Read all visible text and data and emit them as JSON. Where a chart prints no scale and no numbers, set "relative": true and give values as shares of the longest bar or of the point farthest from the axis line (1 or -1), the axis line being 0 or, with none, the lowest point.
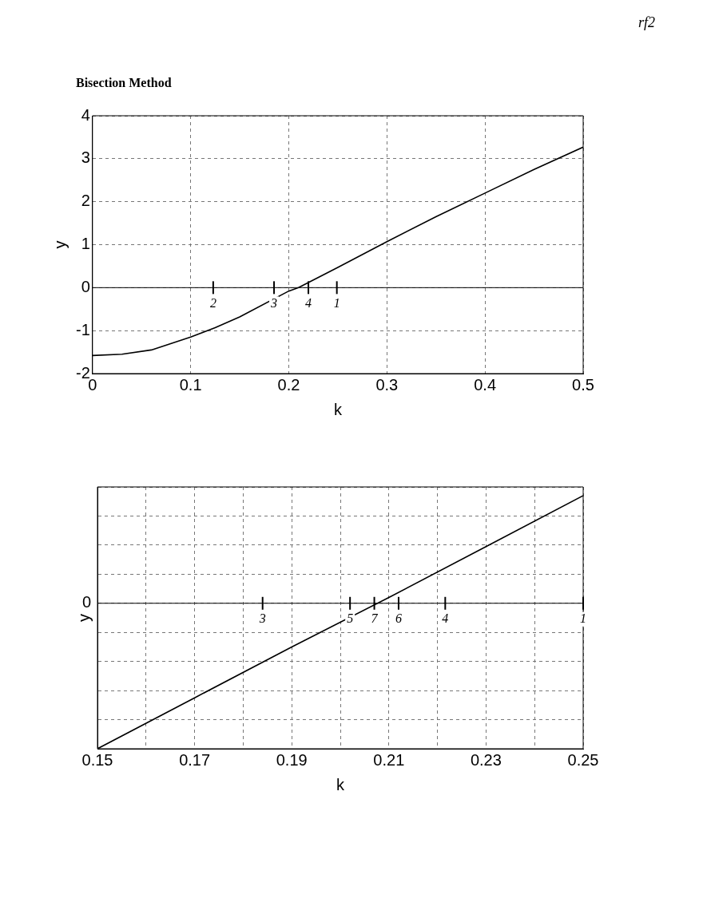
{
  "chart_data": [
    {
      "type": "line",
      "title": "Bisection Method",
      "xlabel": "k",
      "ylabel": "y",
      "x": [
        0,
        0.03,
        0.06,
        0.1,
        0.125,
        0.15,
        0.2,
        0.21,
        0.25,
        0.3,
        0.35,
        0.4,
        0.45,
        0.5
      ],
      "series": [
        {
          "color": "#000000",
          "values": [
            -1.58,
            -1.55,
            -1.45,
            -1.15,
            -0.93,
            -0.68,
            -0.08,
            0,
            0.47,
            1.07,
            1.65,
            2.2,
            2.75,
            3.27
          ]
        }
      ],
      "xlim": [
        0,
        0.5
      ],
      "xticks": [
        0,
        0.1,
        0.2,
        0.3,
        0.4,
        0.5
      ],
      "ylim": [
        -2,
        4
      ],
      "yticks": [
        -2,
        -1,
        0,
        1,
        2,
        3,
        4
      ],
      "grid": true,
      "marker": "none",
      "line_style": "solid",
      "ref_lines": [
        {
          "axis": "y",
          "value": 0,
          "color": "#000000"
        }
      ],
      "annotations": [
        "rf2",
        {
          "text": "2",
          "x": 0.123,
          "y": 0
        },
        {
          "text": "3",
          "x": 0.185,
          "y": 0
        },
        {
          "text": "4",
          "x": 0.22,
          "y": 0
        },
        {
          "text": "1",
          "x": 0.249,
          "y": 0
        }
      ]
    },
    {
      "type": "line",
      "xlabel": "k",
      "ylabel": "y",
      "relative": true,
      "x": [
        0.15,
        0.17,
        0.19,
        0.21,
        0.23,
        0.25
      ],
      "series": [
        {
          "color": "#000000",
          "values": [
            -1,
            -0.65,
            -0.3,
            0.04,
            0.39,
            0.74
          ]
        }
      ],
      "xlim": [
        0.15,
        0.25
      ],
      "xticks": [
        0.15,
        {
          "value": 0.16,
          "label": null
        },
        0.17,
        {
          "value": 0.18,
          "label": null
        },
        0.19,
        {
          "value": 0.2,
          "label": null
        },
        0.21,
        {
          "value": 0.22,
          "label": null
        },
        0.23,
        {
          "value": 0.24,
          "label": null
        },
        0.25
      ],
      "tick_labels": "x",
      "grid": true,
      "marker": "none",
      "line_style": "solid",
      "ref_lines": [
        {
          "axis": "y",
          "value": 0,
          "color": "#000000",
          "label": "0"
        }
      ],
      "annotations": [
        {
          "text": "3",
          "x": 0.184,
          "y": 0
        },
        {
          "text": "5",
          "x": 0.202,
          "y": 0
        },
        {
          "text": "7",
          "x": 0.207,
          "y": 0
        },
        {
          "text": "6",
          "x": 0.212,
          "y": 0
        },
        {
          "text": "4",
          "x": 0.2216,
          "y": 0
        },
        {
          "text": "1",
          "x": 0.25,
          "y": 0
        }
      ]
    }
  ]
}
